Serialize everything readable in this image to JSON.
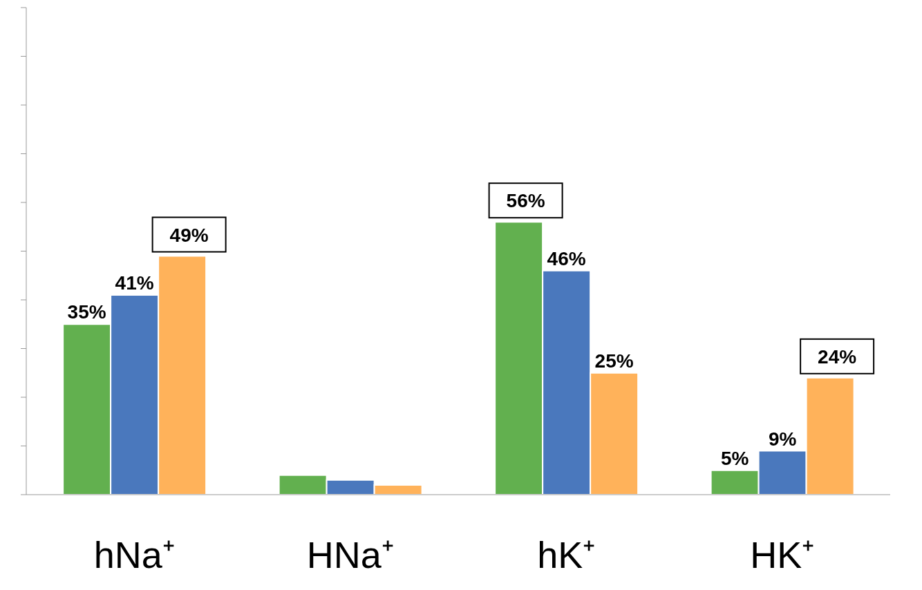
{
  "chart_data": {
    "type": "bar",
    "categories": [
      "hNa⁺",
      "HNa⁺",
      "hK⁺",
      "HK⁺"
    ],
    "series": [
      {
        "color": "#62b04f",
        "values": [
          35,
          4,
          56,
          5
        ],
        "value_labels": [
          "35%",
          null,
          "56%",
          "5%"
        ]
      },
      {
        "color": "#4a78bd",
        "values": [
          41,
          3,
          46,
          9
        ],
        "value_labels": [
          "41%",
          null,
          "46%",
          "9%"
        ]
      },
      {
        "color": "#ffb25a",
        "values": [
          49,
          2,
          25,
          24
        ],
        "value_labels": [
          "49%",
          null,
          "25%",
          "24%"
        ]
      }
    ],
    "ylim": [
      0,
      100
    ],
    "yticks": [
      {
        "value": 0,
        "label": null
      },
      {
        "value": 10,
        "label": null
      },
      {
        "value": 20,
        "label": null
      },
      {
        "value": 30,
        "label": null
      },
      {
        "value": 40,
        "label": null
      },
      {
        "value": 50,
        "label": null
      },
      {
        "value": 60,
        "label": null
      },
      {
        "value": 70,
        "label": null
      },
      {
        "value": 80,
        "label": null
      },
      {
        "value": 90,
        "label": null
      },
      {
        "value": 100,
        "label": null
      }
    ],
    "grid": false,
    "legend": false,
    "tick_labels": "x"
  }
}
